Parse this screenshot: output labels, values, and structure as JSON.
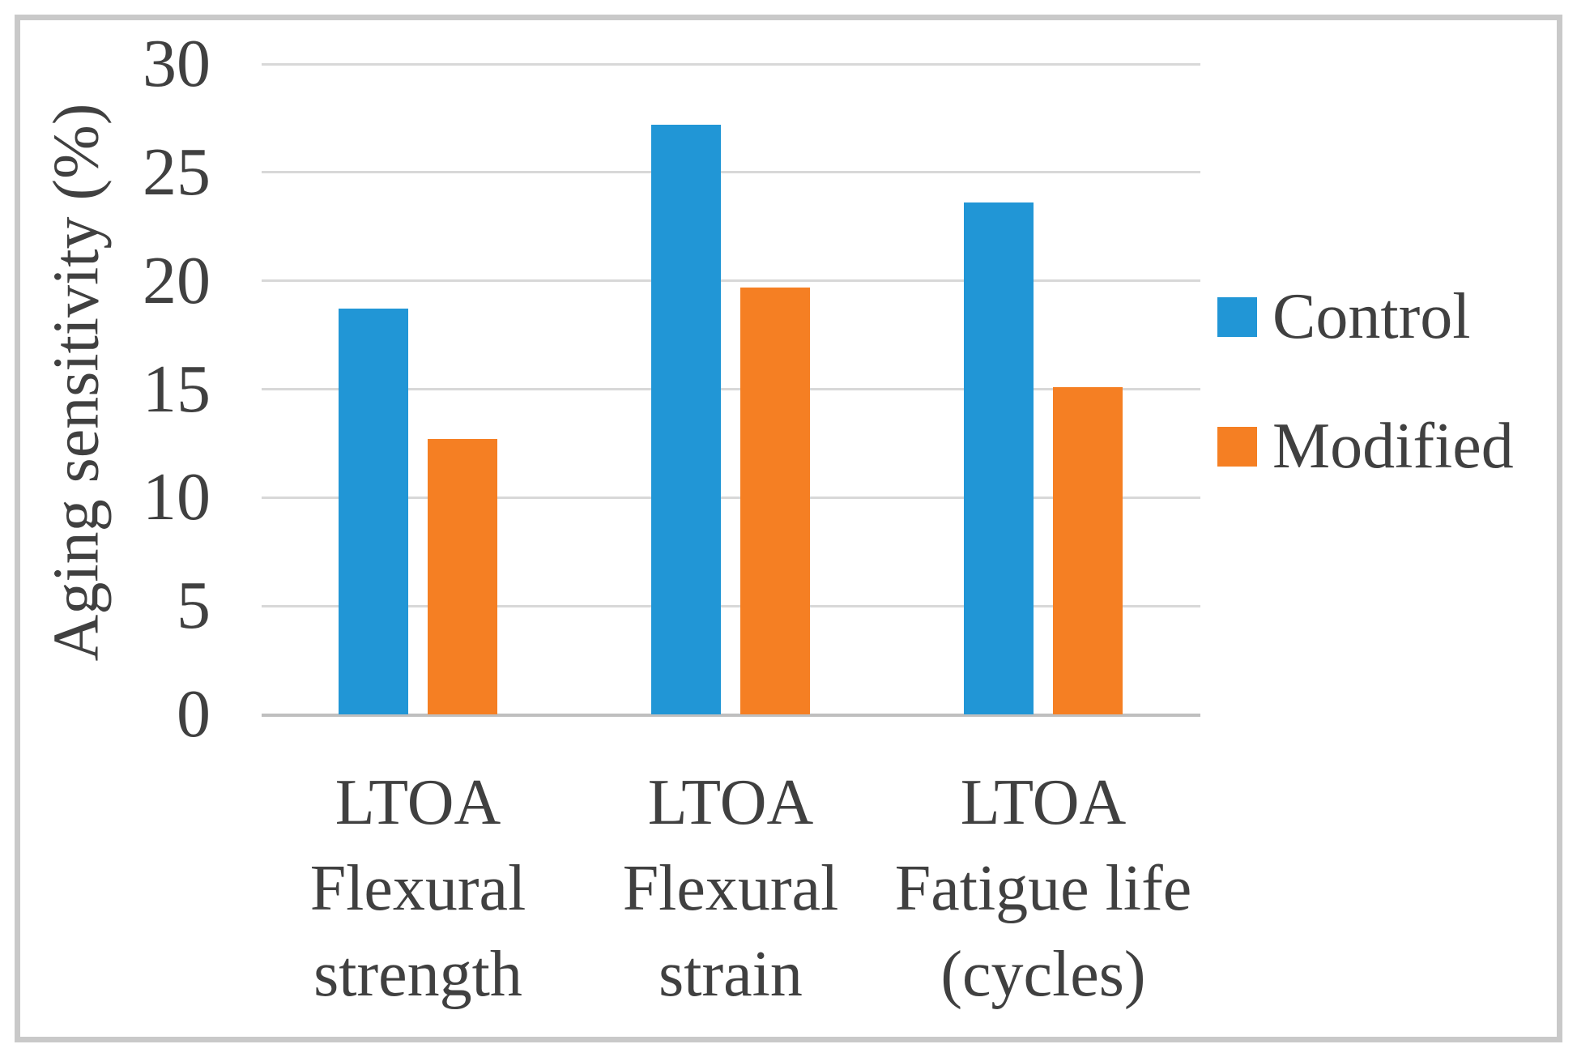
{
  "chart_data": {
    "type": "bar",
    "title": "",
    "ylabel": "Aging sensitivity (%)",
    "xlabel": "",
    "ylim": [
      0,
      30
    ],
    "yticks": [
      0,
      5,
      10,
      15,
      20,
      25,
      30
    ],
    "grid": true,
    "legend_position": "right",
    "categories": [
      "LTOA Flexural strength",
      "LTOA Flexural strain",
      "LTOA Fatigue life (cycles)"
    ],
    "category_lines": [
      [
        "LTOA",
        "Flexural",
        "strength"
      ],
      [
        "LTOA",
        "Flexural",
        "strain"
      ],
      [
        "LTOA",
        "Fatigue life",
        "(cycles)"
      ]
    ],
    "series": [
      {
        "name": "Control",
        "color": "#2196d6",
        "values": [
          18.7,
          27.2,
          23.6
        ]
      },
      {
        "name": "Modified",
        "color": "#f57f23",
        "values": [
          12.7,
          19.7,
          15.1
        ]
      }
    ],
    "colors": {
      "gridline": "#d8d8d8",
      "axis_line": "#bfbfbf",
      "text": "#404040",
      "frame_border": "#c9c9c9",
      "background": "#ffffff"
    }
  }
}
